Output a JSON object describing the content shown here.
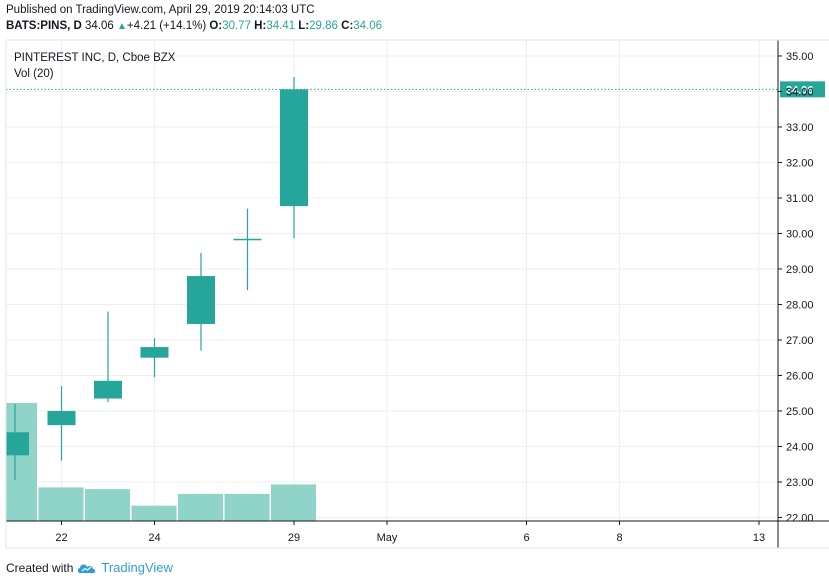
{
  "header": {
    "published": "Published on TradingView.com, April 29, 2019 20:14:03 UTC",
    "symbol": "BATS:PINS, D",
    "last": "34.06",
    "up_arrow": "▲",
    "change": "+4.21 (+14.1%)",
    "o_label": "O:",
    "o_value": "30.77",
    "h_label": "H:",
    "h_value": "34.41",
    "l_label": "L:",
    "l_value": "29.86",
    "c_label": "C:",
    "c_value": "34.06"
  },
  "footer": {
    "created_with": "Created with",
    "brand": "TradingView",
    "logo_icon": "tradingview-cloud-icon"
  },
  "colors": {
    "candle": "#26a69a",
    "volume": "#8fd3c9",
    "grid": "#eceff3",
    "axis": "#131722",
    "last_price_tag": "#26a69a"
  },
  "chart_data": {
    "type": "candlestick",
    "title": "PINTEREST INC, D, Cboe BZX",
    "volume_label": "Vol (20)",
    "ylim": [
      21.9,
      35.45
    ],
    "price_ticks": [
      "22.00",
      "23.00",
      "24.00",
      "25.00",
      "26.00",
      "27.00",
      "28.00",
      "29.00",
      "30.00",
      "31.00",
      "32.00",
      "33.00",
      "34.00",
      "35.00"
    ],
    "last_price": 34.06,
    "last_price_label": "34.06",
    "x_ticks": [
      {
        "label": "22",
        "day": 1
      },
      {
        "label": "24",
        "day": 3
      },
      {
        "label": "29",
        "day": 6
      },
      {
        "label": "May",
        "day": 8
      },
      {
        "label": "6",
        "day": 11
      },
      {
        "label": "8",
        "day": 13
      },
      {
        "label": "13",
        "day": 16
      }
    ],
    "candles": [
      {
        "day": 0,
        "date": "Apr 19",
        "open": 23.75,
        "high": 25.2,
        "low": 23.05,
        "close": 24.4
      },
      {
        "day": 1,
        "date": "Apr 22",
        "open": 24.6,
        "high": 25.7,
        "low": 23.6,
        "close": 25.0
      },
      {
        "day": 2,
        "date": "Apr 23",
        "open": 25.35,
        "high": 27.8,
        "low": 25.25,
        "close": 25.85
      },
      {
        "day": 3,
        "date": "Apr 24",
        "open": 26.5,
        "high": 27.05,
        "low": 25.95,
        "close": 26.8
      },
      {
        "day": 4,
        "date": "Apr 25",
        "open": 27.45,
        "high": 29.45,
        "low": 26.7,
        "close": 28.8
      },
      {
        "day": 5,
        "date": "Apr 26",
        "open": 29.85,
        "high": 30.7,
        "low": 28.4,
        "close": 29.85
      },
      {
        "day": 6,
        "date": "Apr 29",
        "open": 30.77,
        "high": 34.41,
        "low": 29.86,
        "close": 34.06
      }
    ],
    "volume": [
      {
        "day": 0,
        "rel": 1.0
      },
      {
        "day": 1,
        "rel": 0.285
      },
      {
        "day": 2,
        "rel": 0.27
      },
      {
        "day": 3,
        "rel": 0.13
      },
      {
        "day": 4,
        "rel": 0.23
      },
      {
        "day": 5,
        "rel": 0.23
      },
      {
        "day": 6,
        "rel": 0.31
      }
    ]
  }
}
